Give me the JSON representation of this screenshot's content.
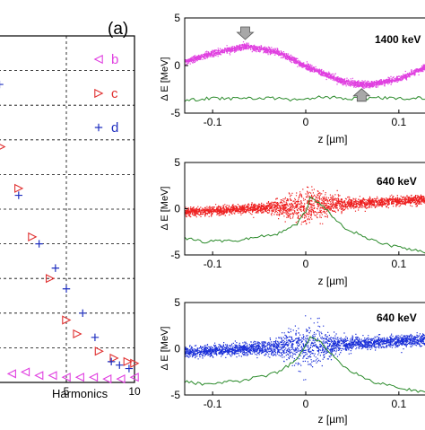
{
  "panel_label": "(a)",
  "chart_data": [
    {
      "type": "scatter",
      "xlabel": "Harmonics",
      "ylabel": "",
      "xlim": [
        0,
        10
      ],
      "ylim": [
        0,
        1
      ],
      "grid": "dashed",
      "x_ticks": [
        5,
        10
      ],
      "legend": [
        {
          "label": "b",
          "marker": "triangle-left",
          "color": "#e040e0"
        },
        {
          "label": "c",
          "marker": "triangle-right",
          "color": "#e03030"
        },
        {
          "label": "d",
          "marker": "plus",
          "color": "#2030c0"
        }
      ],
      "series": [
        {
          "name": "b",
          "marker": "triangle-left",
          "color": "#e040e0",
          "x": [
            1,
            2,
            3,
            4,
            5,
            6,
            7,
            8,
            9,
            10
          ],
          "y": [
            0.025,
            0.03,
            0.02,
            0.02,
            0.015,
            0.015,
            0.015,
            0.01,
            0.01,
            0.015
          ]
        },
        {
          "name": "c",
          "marker": "triangle-right",
          "color": "#e03030",
          "x": [
            0.2,
            1.5,
            2.5,
            3.8,
            5.0,
            5.8,
            7.4,
            8.5,
            9.5,
            10.0
          ],
          "y": [
            0.68,
            0.56,
            0.42,
            0.3,
            0.18,
            0.14,
            0.09,
            0.07,
            0.06,
            0.055
          ]
        },
        {
          "name": "d",
          "marker": "plus",
          "color": "#2030c0",
          "x": [
            0.1,
            1.5,
            3.0,
            4.2,
            5.0,
            6.2,
            7.1,
            8.3,
            8.9,
            9.6
          ],
          "y": [
            0.86,
            0.54,
            0.4,
            0.33,
            0.27,
            0.2,
            0.13,
            0.06,
            0.05,
            0.04
          ]
        }
      ]
    },
    {
      "type": "scatter",
      "annotation": "1400 keV",
      "ylabel": "Δ E [MeV]",
      "xlabel": "z [µm]",
      "xlim": [
        -0.13,
        0.13
      ],
      "ylim": [
        -5,
        5
      ],
      "x_ticks": [
        -0.1,
        0,
        0.1
      ],
      "y_ticks": [
        -5,
        0,
        5
      ],
      "cloud_color": "#e040e0",
      "cloud_center": [
        [
          -0.13,
          0.4
        ],
        [
          -0.1,
          1.3
        ],
        [
          -0.065,
          2.0
        ],
        [
          -0.03,
          1.4
        ],
        [
          0.0,
          -0.1
        ],
        [
          0.04,
          -1.7
        ],
        [
          0.065,
          -2.1
        ],
        [
          0.1,
          -1.4
        ],
        [
          0.13,
          -0.1
        ]
      ],
      "cloud_spread": 0.35,
      "current_color": "#2a8a2a",
      "current_profile": [
        [
          -0.13,
          -3.7
        ],
        [
          -0.1,
          -3.4
        ],
        [
          -0.07,
          -3.5
        ],
        [
          -0.04,
          -3.4
        ],
        [
          -0.01,
          -3.6
        ],
        [
          0.02,
          -3.3
        ],
        [
          0.05,
          -3.5
        ],
        [
          0.08,
          -3.4
        ],
        [
          0.11,
          -3.5
        ],
        [
          0.13,
          -3.4
        ]
      ],
      "markers": [
        {
          "icon": "down-arrow-icon",
          "x": -0.065,
          "y": 3.3
        },
        {
          "icon": "up-arrow-icon",
          "x": 0.06,
          "y": -3.0
        }
      ]
    },
    {
      "type": "scatter",
      "annotation": "640 keV",
      "ylabel": "Δ E [MeV]",
      "xlabel": "z [µm]",
      "xlim": [
        -0.13,
        0.13
      ],
      "ylim": [
        -5,
        5
      ],
      "x_ticks": [
        -0.1,
        0,
        0.1
      ],
      "y_ticks": [
        -5,
        0,
        5
      ],
      "cloud_color": "#ee2020",
      "cloud_center": [
        [
          -0.13,
          -0.4
        ],
        [
          -0.06,
          0.0
        ],
        [
          0.0,
          0.3
        ],
        [
          0.06,
          0.6
        ],
        [
          0.13,
          1.0
        ]
      ],
      "cloud_spread": 0.9,
      "current_color": "#2a8a2a",
      "current_profile": [
        [
          -0.13,
          -3.2
        ],
        [
          -0.11,
          -3.6
        ],
        [
          -0.07,
          -3.4
        ],
        [
          -0.03,
          -2.7
        ],
        [
          -0.01,
          -1.7
        ],
        [
          0.0,
          -0.3
        ],
        [
          0.005,
          1.4
        ],
        [
          0.02,
          0.2
        ],
        [
          0.04,
          -2.0
        ],
        [
          0.07,
          -3.4
        ],
        [
          0.1,
          -4.2
        ],
        [
          0.13,
          -4.7
        ]
      ],
      "markers": []
    },
    {
      "type": "scatter",
      "annotation": "640 keV",
      "ylabel": "Δ E [MeV]",
      "xlabel": "z [µm]",
      "xlim": [
        -0.13,
        0.13
      ],
      "ylim": [
        -5,
        5
      ],
      "x_ticks": [
        -0.1,
        0,
        0.1
      ],
      "y_ticks": [
        -5,
        0,
        5
      ],
      "cloud_color": "#1a2fd8",
      "cloud_center": [
        [
          -0.13,
          -0.4
        ],
        [
          -0.06,
          0.0
        ],
        [
          0.0,
          0.3
        ],
        [
          0.06,
          0.6
        ],
        [
          0.13,
          1.0
        ]
      ],
      "cloud_spread": 1.1,
      "current_color": "#2a8a2a",
      "current_profile": [
        [
          -0.13,
          -3.6
        ],
        [
          -0.11,
          -3.8
        ],
        [
          -0.07,
          -3.5
        ],
        [
          -0.03,
          -2.6
        ],
        [
          -0.01,
          -1.2
        ],
        [
          0.0,
          0.3
        ],
        [
          0.005,
          1.5
        ],
        [
          0.02,
          0.3
        ],
        [
          0.04,
          -2.0
        ],
        [
          0.07,
          -3.5
        ],
        [
          0.1,
          -4.3
        ],
        [
          0.13,
          -4.7
        ]
      ],
      "markers": []
    }
  ]
}
